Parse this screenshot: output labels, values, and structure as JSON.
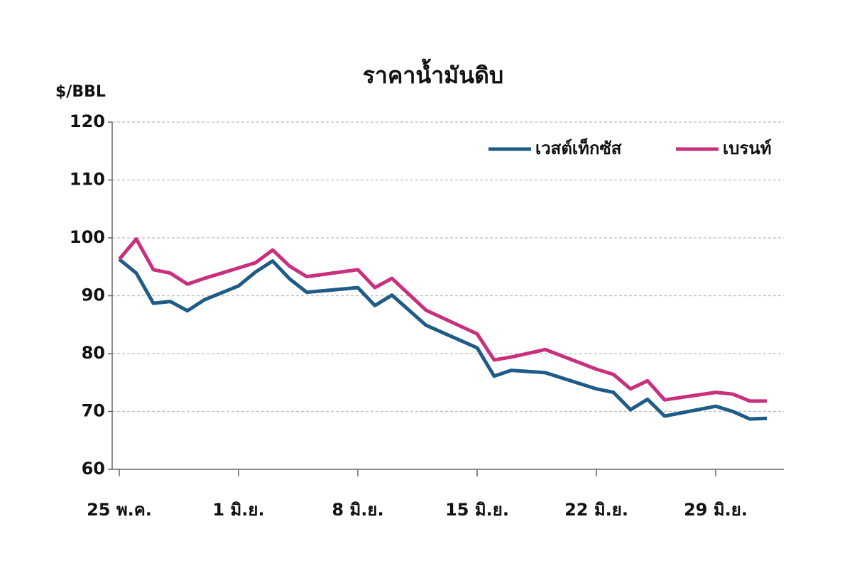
{
  "chart_data": {
    "type": "line",
    "title": "ราคาน้ำมันดิบ",
    "y_label": "$/BBL",
    "x": [
      0,
      1,
      2,
      3,
      4,
      5,
      7,
      8,
      9,
      10,
      11,
      14,
      15,
      16,
      18,
      21,
      22,
      23,
      25,
      28,
      29,
      30,
      31,
      32,
      35,
      36,
      37,
      38
    ],
    "series": [
      {
        "name": "เวสต์เท็กซัส",
        "color": "#1f5b87",
        "values": [
          96.3,
          93.9,
          88.7,
          89.0,
          87.4,
          89.3,
          91.7,
          94.1,
          96.0,
          92.9,
          90.6,
          91.4,
          88.3,
          90.1,
          84.9,
          81.0,
          76.1,
          77.1,
          76.7,
          73.9,
          73.3,
          70.3,
          72.1,
          69.2,
          70.9,
          70.0,
          68.7,
          68.8
        ]
      },
      {
        "name": "เบรนท์",
        "color": "#c8307e",
        "values": [
          96.3,
          99.8,
          94.5,
          93.9,
          92.0,
          93.0,
          94.8,
          95.7,
          97.9,
          95.1,
          93.3,
          94.5,
          91.4,
          93.0,
          87.5,
          83.4,
          78.9,
          79.4,
          80.7,
          77.3,
          76.4,
          73.9,
          75.3,
          72.0,
          73.3,
          73.0,
          71.8,
          71.8
        ]
      }
    ],
    "xlim": [
      0,
      39
    ],
    "xticks": [
      {
        "value": 0,
        "label": "25 พ.ค."
      },
      {
        "value": 7,
        "label": "1 มิ.ย."
      },
      {
        "value": 14,
        "label": "8 มิ.ย."
      },
      {
        "value": 21,
        "label": "15 มิ.ย."
      },
      {
        "value": 28,
        "label": "22 มิ.ย."
      },
      {
        "value": 35,
        "label": "29 มิ.ย."
      }
    ],
    "ylim": [
      60,
      120
    ],
    "yticks": [
      60,
      70,
      80,
      90,
      100,
      110,
      120
    ],
    "grid": true,
    "legend": "top-right"
  }
}
